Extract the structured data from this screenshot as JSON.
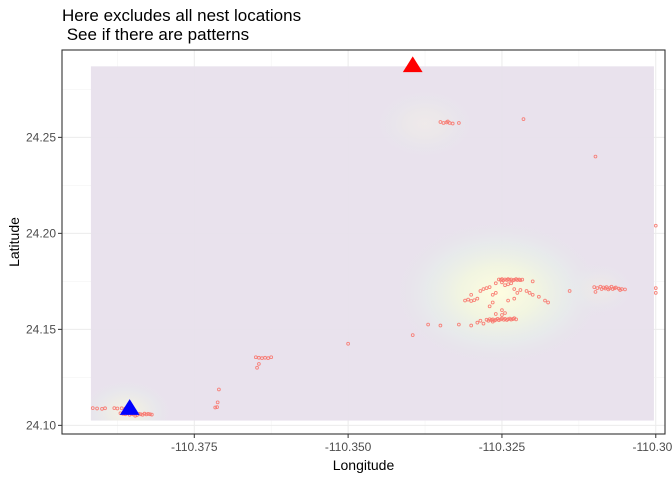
{
  "chart_data": {
    "type": "scatter",
    "title_lines": [
      "Here excludes all nest locations",
      " See if there are patterns"
    ],
    "xlabel": "Longitude",
    "ylabel": "Latitude",
    "xlim": [
      -110.3965,
      -110.2985
    ],
    "ylim": [
      24.0955,
      24.2955
    ],
    "x_ticks": [
      -110.375,
      -110.35,
      -110.325,
      -110.3,
      -110.275
    ],
    "x_tick_labels": [
      "-110.375",
      "-110.350",
      "-110.325",
      "-110.300"
    ],
    "y_ticks": [
      24.1,
      24.15,
      24.2,
      24.25
    ],
    "y_tick_labels": [
      "24.10",
      "24.15",
      "24.20",
      "24.25"
    ],
    "grid": true,
    "density_extent": {
      "x": [
        -110.3918,
        -110.3003
      ],
      "y": [
        24.1025,
        24.287
      ]
    },
    "density_hotspots": [
      {
        "x": -110.3255,
        "y": 24.169,
        "rx": 0.018,
        "ry": 0.04,
        "strength": 1.0
      },
      {
        "x": -110.3375,
        "y": 24.257,
        "rx": 0.009,
        "ry": 0.02,
        "strength": 0.28
      },
      {
        "x": -110.386,
        "y": 24.107,
        "rx": 0.008,
        "ry": 0.018,
        "strength": 0.55
      },
      {
        "x": -110.309,
        "y": 24.171,
        "rx": 0.006,
        "ry": 0.015,
        "strength": 0.25
      }
    ],
    "markers": [
      {
        "name": "red-triangle",
        "x": -110.3395,
        "y": 24.2875,
        "color": "#ff0000"
      },
      {
        "name": "blue-triangle",
        "x": -110.3855,
        "y": 24.109,
        "color": "#0000ff"
      }
    ],
    "point_color": "#f8766d",
    "background_color": "#e8e0ec",
    "points": [
      [
        -110.3915,
        24.109
      ],
      [
        -110.3908,
        24.1088
      ],
      [
        -110.39,
        24.1086
      ],
      [
        -110.3895,
        24.1089
      ],
      [
        -110.388,
        24.109
      ],
      [
        -110.3875,
        24.1088
      ],
      [
        -110.3868,
        24.1089
      ],
      [
        -110.3862,
        24.1088
      ],
      [
        -110.387,
        24.1063
      ],
      [
        -110.3866,
        24.106
      ],
      [
        -110.3862,
        24.1058
      ],
      [
        -110.3858,
        24.1062
      ],
      [
        -110.3855,
        24.1055
      ],
      [
        -110.3852,
        24.106
      ],
      [
        -110.3849,
        24.1057
      ],
      [
        -110.3846,
        24.1062
      ],
      [
        -110.3843,
        24.1054
      ],
      [
        -110.384,
        24.106
      ],
      [
        -110.3837,
        24.1058
      ],
      [
        -110.3834,
        24.1055
      ],
      [
        -110.3831,
        24.1061
      ],
      [
        -110.3828,
        24.1057
      ],
      [
        -110.3825,
        24.106
      ],
      [
        -110.3822,
        24.1058
      ],
      [
        -110.3819,
        24.1056
      ],
      [
        -110.385,
        24.1065
      ],
      [
        -110.386,
        24.1066
      ],
      [
        -110.3846,
        24.105
      ],
      [
        -110.371,
        24.1187
      ],
      [
        -110.3712,
        24.112
      ],
      [
        -110.3713,
        24.1095
      ],
      [
        -110.3716,
        24.1093
      ],
      [
        -110.365,
        24.1355
      ],
      [
        -110.3645,
        24.1352
      ],
      [
        -110.364,
        24.135
      ],
      [
        -110.3635,
        24.1352
      ],
      [
        -110.363,
        24.135
      ],
      [
        -110.3625,
        24.1355
      ],
      [
        -110.3648,
        24.13
      ],
      [
        -110.3645,
        24.132
      ],
      [
        -110.35,
        24.1425
      ],
      [
        -110.3395,
        24.147
      ],
      [
        -110.335,
        24.258
      ],
      [
        -110.3345,
        24.2575
      ],
      [
        -110.334,
        24.2578
      ],
      [
        -110.3335,
        24.2575
      ],
      [
        -110.333,
        24.2572
      ],
      [
        -110.332,
        24.2575
      ],
      [
        -110.3338,
        24.2583
      ],
      [
        -110.3215,
        24.2595
      ],
      [
        -110.3098,
        24.24
      ],
      [
        -110.3,
        24.204
      ],
      [
        -110.337,
        24.1525
      ],
      [
        -110.335,
        24.152
      ],
      [
        -110.332,
        24.1525
      ],
      [
        -110.33,
        24.152
      ],
      [
        -110.331,
        24.165
      ],
      [
        -110.3305,
        24.1655
      ],
      [
        -110.33,
        24.1648
      ],
      [
        -110.3295,
        24.1652
      ],
      [
        -110.329,
        24.166
      ],
      [
        -110.33,
        24.168
      ],
      [
        -110.3285,
        24.17
      ],
      [
        -110.328,
        24.171
      ],
      [
        -110.3275,
        24.1715
      ],
      [
        -110.327,
        24.172
      ],
      [
        -110.3265,
        24.168
      ],
      [
        -110.326,
        24.169
      ],
      [
        -110.3255,
        24.176
      ],
      [
        -110.3252,
        24.1758
      ],
      [
        -110.325,
        24.1762
      ],
      [
        -110.3248,
        24.1755
      ],
      [
        -110.3245,
        24.176
      ],
      [
        -110.3242,
        24.1757
      ],
      [
        -110.324,
        24.1762
      ],
      [
        -110.3238,
        24.1758
      ],
      [
        -110.3235,
        24.176
      ],
      [
        -110.3232,
        24.1755
      ],
      [
        -110.323,
        24.1758
      ],
      [
        -110.3227,
        24.1762
      ],
      [
        -110.3225,
        24.1757
      ],
      [
        -110.3222,
        24.176
      ],
      [
        -110.322,
        24.1756
      ],
      [
        -110.3217,
        24.1759
      ],
      [
        -110.3245,
        24.173
      ],
      [
        -110.324,
        24.1735
      ],
      [
        -110.3235,
        24.174
      ],
      [
        -110.325,
        24.1745
      ],
      [
        -110.326,
        24.174
      ],
      [
        -110.323,
        24.171
      ],
      [
        -110.3225,
        24.169
      ],
      [
        -110.322,
        24.1705
      ],
      [
        -110.321,
        24.17
      ],
      [
        -110.3205,
        24.169
      ],
      [
        -110.32,
        24.168
      ],
      [
        -110.325,
        24.16
      ],
      [
        -110.327,
        24.162
      ],
      [
        -110.3265,
        24.164
      ],
      [
        -110.324,
        24.165
      ],
      [
        -110.323,
        24.166
      ],
      [
        -110.3275,
        24.155
      ],
      [
        -110.3272,
        24.1545
      ],
      [
        -110.327,
        24.1553
      ],
      [
        -110.3267,
        24.1548
      ],
      [
        -110.3265,
        24.1552
      ],
      [
        -110.3262,
        24.1546
      ],
      [
        -110.326,
        24.155
      ],
      [
        -110.3257,
        24.1555
      ],
      [
        -110.3255,
        24.1548
      ],
      [
        -110.3252,
        24.1552
      ],
      [
        -110.325,
        24.1557
      ],
      [
        -110.3247,
        24.155
      ],
      [
        -110.3245,
        24.1555
      ],
      [
        -110.3242,
        24.1549
      ],
      [
        -110.324,
        24.1553
      ],
      [
        -110.3237,
        24.1556
      ],
      [
        -110.3235,
        24.1551
      ],
      [
        -110.3232,
        24.1554
      ],
      [
        -110.323,
        24.1558
      ],
      [
        -110.3227,
        24.1552
      ],
      [
        -110.326,
        24.158
      ],
      [
        -110.325,
        24.1575
      ],
      [
        -110.3245,
        24.1585
      ],
      [
        -110.3265,
        24.154
      ],
      [
        -110.328,
        24.153
      ],
      [
        -110.3285,
        24.1545
      ],
      [
        -110.329,
        24.1535
      ],
      [
        -110.32,
        24.175
      ],
      [
        -110.319,
        24.167
      ],
      [
        -110.318,
        24.165
      ],
      [
        -110.3175,
        24.164
      ],
      [
        -110.314,
        24.17
      ],
      [
        -110.31,
        24.172
      ],
      [
        -110.3095,
        24.1715
      ],
      [
        -110.309,
        24.1722
      ],
      [
        -110.3088,
        24.171
      ],
      [
        -110.3085,
        24.1718
      ],
      [
        -110.3082,
        24.1713
      ],
      [
        -110.308,
        24.172
      ],
      [
        -110.3077,
        24.1708
      ],
      [
        -110.3075,
        24.1715
      ],
      [
        -110.3072,
        24.1722
      ],
      [
        -110.307,
        24.171
      ],
      [
        -110.3067,
        24.1714
      ],
      [
        -110.3065,
        24.1718
      ],
      [
        -110.306,
        24.1712
      ],
      [
        -110.3058,
        24.1705
      ],
      [
        -110.3055,
        24.171
      ],
      [
        -110.3098,
        24.1695
      ],
      [
        -110.305,
        24.1708
      ],
      [
        -110.3,
        24.1715
      ],
      [
        -110.3,
        24.169
      ]
    ]
  }
}
